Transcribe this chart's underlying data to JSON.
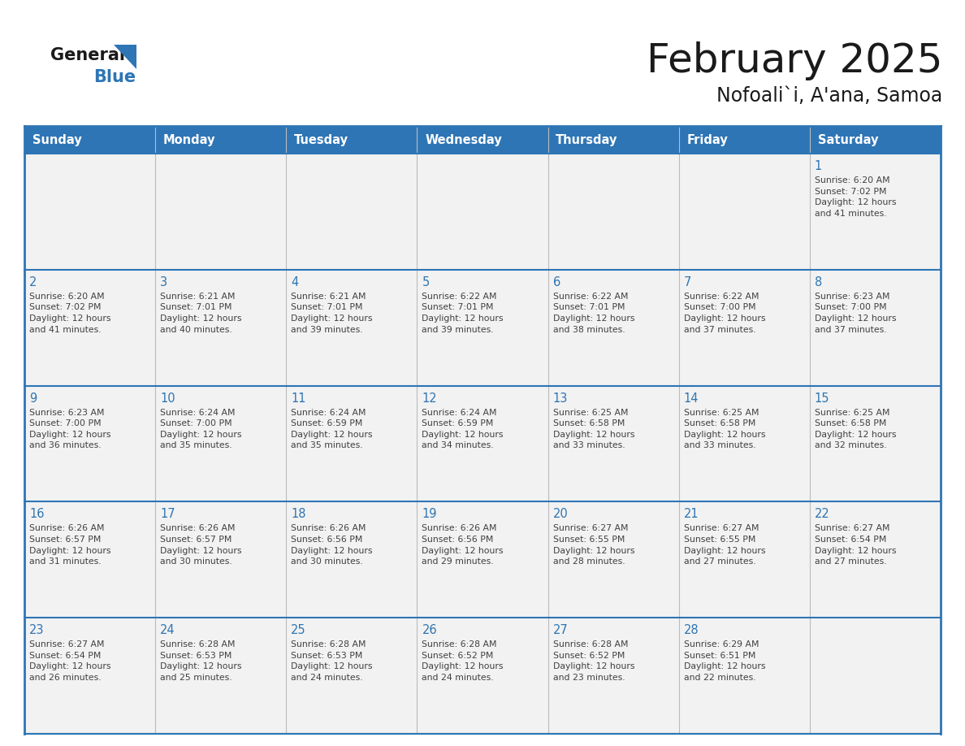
{
  "title": "February 2025",
  "subtitle": "Nofoali`i, A'ana, Samoa",
  "header_bg": "#2E75B6",
  "header_text_color": "#FFFFFF",
  "cell_bg": "#F2F2F2",
  "day_number_color": "#2E75B2",
  "text_color": "#404040",
  "border_color": "#2E75B6",
  "days_of_week": [
    "Sunday",
    "Monday",
    "Tuesday",
    "Wednesday",
    "Thursday",
    "Friday",
    "Saturday"
  ],
  "calendar": [
    [
      {
        "day": 0,
        "info": ""
      },
      {
        "day": 0,
        "info": ""
      },
      {
        "day": 0,
        "info": ""
      },
      {
        "day": 0,
        "info": ""
      },
      {
        "day": 0,
        "info": ""
      },
      {
        "day": 0,
        "info": ""
      },
      {
        "day": 1,
        "info": "Sunrise: 6:20 AM\nSunset: 7:02 PM\nDaylight: 12 hours\nand 41 minutes."
      }
    ],
    [
      {
        "day": 2,
        "info": "Sunrise: 6:20 AM\nSunset: 7:02 PM\nDaylight: 12 hours\nand 41 minutes."
      },
      {
        "day": 3,
        "info": "Sunrise: 6:21 AM\nSunset: 7:01 PM\nDaylight: 12 hours\nand 40 minutes."
      },
      {
        "day": 4,
        "info": "Sunrise: 6:21 AM\nSunset: 7:01 PM\nDaylight: 12 hours\nand 39 minutes."
      },
      {
        "day": 5,
        "info": "Sunrise: 6:22 AM\nSunset: 7:01 PM\nDaylight: 12 hours\nand 39 minutes."
      },
      {
        "day": 6,
        "info": "Sunrise: 6:22 AM\nSunset: 7:01 PM\nDaylight: 12 hours\nand 38 minutes."
      },
      {
        "day": 7,
        "info": "Sunrise: 6:22 AM\nSunset: 7:00 PM\nDaylight: 12 hours\nand 37 minutes."
      },
      {
        "day": 8,
        "info": "Sunrise: 6:23 AM\nSunset: 7:00 PM\nDaylight: 12 hours\nand 37 minutes."
      }
    ],
    [
      {
        "day": 9,
        "info": "Sunrise: 6:23 AM\nSunset: 7:00 PM\nDaylight: 12 hours\nand 36 minutes."
      },
      {
        "day": 10,
        "info": "Sunrise: 6:24 AM\nSunset: 7:00 PM\nDaylight: 12 hours\nand 35 minutes."
      },
      {
        "day": 11,
        "info": "Sunrise: 6:24 AM\nSunset: 6:59 PM\nDaylight: 12 hours\nand 35 minutes."
      },
      {
        "day": 12,
        "info": "Sunrise: 6:24 AM\nSunset: 6:59 PM\nDaylight: 12 hours\nand 34 minutes."
      },
      {
        "day": 13,
        "info": "Sunrise: 6:25 AM\nSunset: 6:58 PM\nDaylight: 12 hours\nand 33 minutes."
      },
      {
        "day": 14,
        "info": "Sunrise: 6:25 AM\nSunset: 6:58 PM\nDaylight: 12 hours\nand 33 minutes."
      },
      {
        "day": 15,
        "info": "Sunrise: 6:25 AM\nSunset: 6:58 PM\nDaylight: 12 hours\nand 32 minutes."
      }
    ],
    [
      {
        "day": 16,
        "info": "Sunrise: 6:26 AM\nSunset: 6:57 PM\nDaylight: 12 hours\nand 31 minutes."
      },
      {
        "day": 17,
        "info": "Sunrise: 6:26 AM\nSunset: 6:57 PM\nDaylight: 12 hours\nand 30 minutes."
      },
      {
        "day": 18,
        "info": "Sunrise: 6:26 AM\nSunset: 6:56 PM\nDaylight: 12 hours\nand 30 minutes."
      },
      {
        "day": 19,
        "info": "Sunrise: 6:26 AM\nSunset: 6:56 PM\nDaylight: 12 hours\nand 29 minutes."
      },
      {
        "day": 20,
        "info": "Sunrise: 6:27 AM\nSunset: 6:55 PM\nDaylight: 12 hours\nand 28 minutes."
      },
      {
        "day": 21,
        "info": "Sunrise: 6:27 AM\nSunset: 6:55 PM\nDaylight: 12 hours\nand 27 minutes."
      },
      {
        "day": 22,
        "info": "Sunrise: 6:27 AM\nSunset: 6:54 PM\nDaylight: 12 hours\nand 27 minutes."
      }
    ],
    [
      {
        "day": 23,
        "info": "Sunrise: 6:27 AM\nSunset: 6:54 PM\nDaylight: 12 hours\nand 26 minutes."
      },
      {
        "day": 24,
        "info": "Sunrise: 6:28 AM\nSunset: 6:53 PM\nDaylight: 12 hours\nand 25 minutes."
      },
      {
        "day": 25,
        "info": "Sunrise: 6:28 AM\nSunset: 6:53 PM\nDaylight: 12 hours\nand 24 minutes."
      },
      {
        "day": 26,
        "info": "Sunrise: 6:28 AM\nSunset: 6:52 PM\nDaylight: 12 hours\nand 24 minutes."
      },
      {
        "day": 27,
        "info": "Sunrise: 6:28 AM\nSunset: 6:52 PM\nDaylight: 12 hours\nand 23 minutes."
      },
      {
        "day": 28,
        "info": "Sunrise: 6:29 AM\nSunset: 6:51 PM\nDaylight: 12 hours\nand 22 minutes."
      },
      {
        "day": 0,
        "info": ""
      }
    ]
  ]
}
